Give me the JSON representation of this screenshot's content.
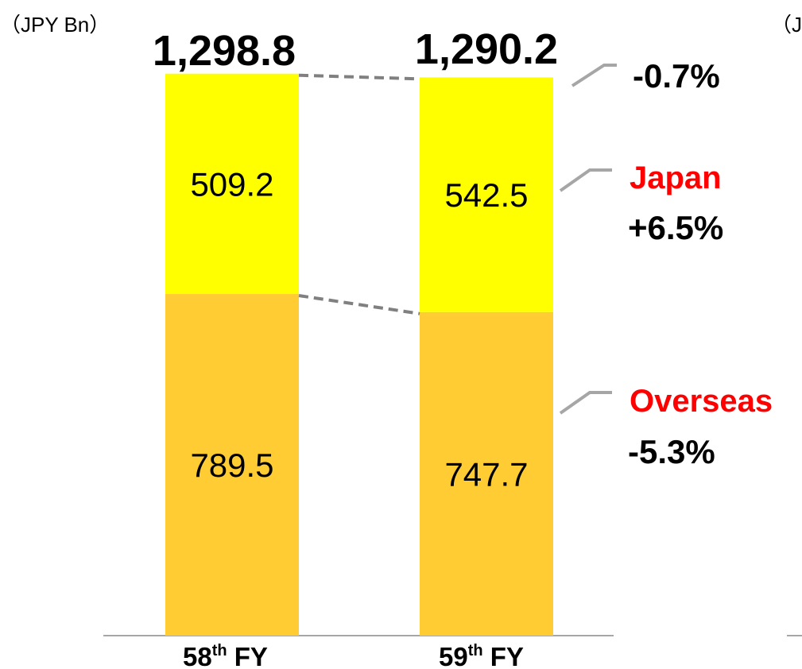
{
  "chart_data": {
    "type": "bar",
    "stacked": true,
    "unit_label": "（JPY Bn）",
    "right_cut_label": "（J",
    "categories": [
      {
        "ordinal": "58",
        "suffix": "th",
        "rest": " FY"
      },
      {
        "ordinal": "59",
        "suffix": "th",
        "rest": " FY"
      }
    ],
    "series": [
      {
        "name": "Overseas",
        "values": [
          789.5,
          747.7
        ],
        "labels": [
          "789.5",
          "747.7"
        ]
      },
      {
        "name": "Japan",
        "values": [
          509.2,
          542.5
        ],
        "labels": [
          "509.2",
          "542.5"
        ]
      }
    ],
    "totals": [
      "1,298.8",
      "1,290.2"
    ],
    "changes": {
      "total": "-0.7%",
      "japan": {
        "label": "Japan",
        "change": "+6.5%"
      },
      "overseas": {
        "label": "Overseas",
        "change": "-5.3%"
      }
    },
    "ylim": [
      0,
      1300
    ],
    "grid": false,
    "legend": "none",
    "colors": {
      "japan": "#FFFF00",
      "overseas": "#FFCC33",
      "region_label": "#FF0000",
      "connector": "#808080",
      "leader": "#A6A6A6",
      "axis": "#A6A6A6"
    }
  }
}
